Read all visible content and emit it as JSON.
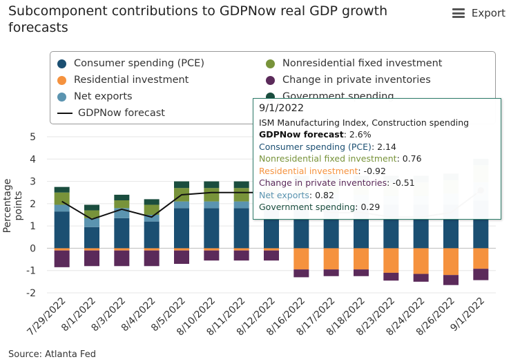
{
  "header": {
    "title": "Subcomponent contributions to GDPNow real GDP growth forecasts",
    "export_label": "Export"
  },
  "source": "Source: Atlanta Fed",
  "colors": {
    "pce": "#1b4f72",
    "residential": "#f5923e",
    "net_exports": "#5b94b0",
    "nonres": "#78933a",
    "inventories": "#5b2a5a",
    "government": "#1a4d3e",
    "forecast": "#111111"
  },
  "legend": [
    {
      "key": "pce",
      "label": "Consumer spending (PCE)"
    },
    {
      "key": "nonres",
      "label": "Nonresidential fixed investment"
    },
    {
      "key": "residential",
      "label": "Residential investment"
    },
    {
      "key": "inventories",
      "label": "Change in private inventories"
    },
    {
      "key": "net_exports",
      "label": "Net exports"
    },
    {
      "key": "government",
      "label": "Government spending"
    },
    {
      "key": "forecast",
      "label": "GDPNow forecast"
    }
  ],
  "tooltip": {
    "date": "9/1/2022",
    "event": "ISM Manufacturing Index, Construction spending",
    "lines": [
      {
        "label": "GDPNow forecast",
        "value": "2.6%",
        "color": "#111111",
        "bold": true
      },
      {
        "label": "Consumer spending (PCE)",
        "value": "2.14",
        "color": "#1b4f72"
      },
      {
        "label": "Nonresidential fixed investment",
        "value": "0.76",
        "color": "#78933a"
      },
      {
        "label": "Residential investment",
        "value": "-0.92",
        "color": "#f5923e"
      },
      {
        "label": "Change in private inventories",
        "value": "-0.51",
        "color": "#5b2a5a"
      },
      {
        "label": "Net exports",
        "value": "0.82",
        "color": "#5b94b0"
      },
      {
        "label": "Government spending",
        "value": "0.29",
        "color": "#1a4d3e"
      }
    ]
  },
  "chart_data": {
    "type": "bar",
    "stacked": true,
    "title": "Subcomponent contributions to GDPNow real GDP growth forecasts",
    "xlabel": "",
    "ylabel": "Percentage points",
    "ylim": [
      -2,
      5
    ],
    "yticks": [
      -2,
      -1,
      0,
      1,
      2,
      3,
      4,
      5
    ],
    "categories": [
      "7/29/2022",
      "8/1/2022",
      "8/3/2022",
      "8/4/2022",
      "8/5/2022",
      "8/10/2022",
      "8/11/2022",
      "8/12/2022",
      "8/16/2022",
      "8/17/2022",
      "8/18/2022",
      "8/23/2022",
      "8/24/2022",
      "8/26/2022",
      "9/1/2022"
    ],
    "series": [
      {
        "key": "pce",
        "name": "Consumer spending (PCE)",
        "values": [
          1.65,
          0.95,
          1.35,
          1.2,
          1.8,
          1.8,
          1.8,
          1.9,
          1.9,
          1.95,
          1.9,
          1.95,
          1.95,
          1.95,
          2.14
        ]
      },
      {
        "key": "residential",
        "name": "Residential investment",
        "values": [
          -0.1,
          -0.1,
          -0.1,
          -0.1,
          -0.1,
          -0.1,
          -0.1,
          -0.1,
          -0.95,
          -0.95,
          -0.95,
          -1.1,
          -1.15,
          -1.2,
          -0.92
        ]
      },
      {
        "key": "net_exports",
        "name": "Net exports",
        "values": [
          0.3,
          0.4,
          0.45,
          0.3,
          0.3,
          0.3,
          0.3,
          0.3,
          0.5,
          0.5,
          0.5,
          0.4,
          0.4,
          0.5,
          0.82
        ]
      },
      {
        "key": "nonres",
        "name": "Nonresidential fixed investment",
        "values": [
          0.55,
          0.35,
          0.35,
          0.45,
          0.6,
          0.6,
          0.6,
          0.6,
          0.55,
          0.55,
          0.55,
          0.6,
          0.6,
          0.6,
          0.76
        ]
      },
      {
        "key": "inventories",
        "name": "Change in private inventories",
        "values": [
          -0.75,
          -0.7,
          -0.7,
          -0.7,
          -0.6,
          -0.45,
          -0.45,
          -0.45,
          -0.35,
          -0.3,
          -0.3,
          -0.35,
          -0.35,
          -0.45,
          -0.51
        ]
      },
      {
        "key": "government",
        "name": "Government spending",
        "values": [
          0.25,
          0.25,
          0.25,
          0.25,
          0.3,
          0.3,
          0.3,
          0.3,
          0.3,
          0.3,
          0.3,
          0.3,
          0.3,
          0.3,
          0.29
        ]
      }
    ],
    "line": {
      "key": "forecast",
      "name": "GDPNow forecast",
      "values": [
        2.1,
        1.3,
        1.75,
        1.4,
        2.4,
        2.5,
        2.5,
        2.5,
        1.8,
        1.6,
        1.6,
        1.4,
        1.4,
        1.6,
        2.6
      ]
    },
    "highlight_index": 14
  }
}
